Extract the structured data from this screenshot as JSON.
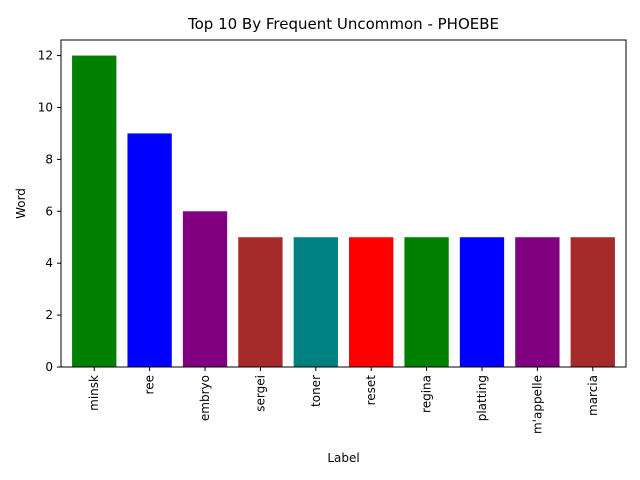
{
  "chart_data": {
    "type": "bar",
    "title": "Top 10 By Frequent Uncommon - PHOEBE",
    "xlabel": "Label",
    "ylabel": "Word",
    "categories": [
      "minsk",
      "ree",
      "embryo",
      "sergei",
      "toner",
      "reset",
      "regina",
      "platting",
      "m'appelle",
      "marcia"
    ],
    "values": [
      12,
      9,
      6,
      5,
      5,
      5,
      5,
      5,
      5,
      5
    ],
    "colors": [
      "#008000",
      "#0000ff",
      "#800080",
      "#a52a2a",
      "#008080",
      "#ff0000",
      "#008000",
      "#0000ff",
      "#800080",
      "#a52a2a"
    ],
    "ylim": [
      0,
      12.6
    ],
    "yticks": [
      0,
      2,
      4,
      6,
      8,
      10,
      12
    ],
    "grid": false,
    "legend": "none"
  }
}
